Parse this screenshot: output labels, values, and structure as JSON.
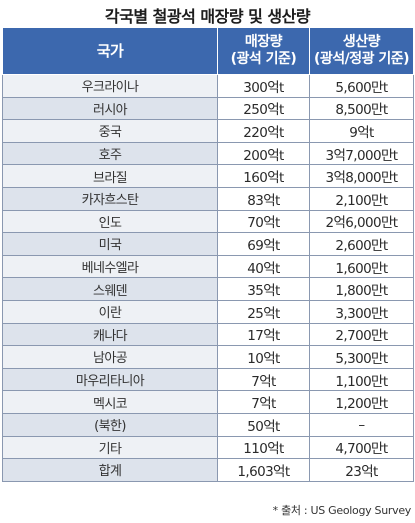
{
  "title": "각국별 철광석 매장량 및 생산량",
  "headers": {
    "country": "국가",
    "reserve_line1": "매장량",
    "reserve_line2": "(광석 기준)",
    "production_line1": "생산량",
    "production_line2": "(광석/정광 기준)"
  },
  "rows": [
    {
      "country": "우크라이나",
      "reserve": "300억t",
      "production": "5,600만t"
    },
    {
      "country": "러시아",
      "reserve": "250억t",
      "production": "8,500만t"
    },
    {
      "country": "중국",
      "reserve": "220억t",
      "production": "9억t"
    },
    {
      "country": "호주",
      "reserve": "200억t",
      "production": "3억7,000만t"
    },
    {
      "country": "브라질",
      "reserve": "160억t",
      "production": "3억8,000만t"
    },
    {
      "country": "카자흐스탄",
      "reserve": "83억t",
      "production": "2,100만t"
    },
    {
      "country": "인도",
      "reserve": "70억t",
      "production": "2억6,000만t"
    },
    {
      "country": "미국",
      "reserve": "69억t",
      "production": "2,600만t"
    },
    {
      "country": "베네수엘라",
      "reserve": "40억t",
      "production": "1,600만t"
    },
    {
      "country": "스웨덴",
      "reserve": "35억t",
      "production": "1,800만t"
    },
    {
      "country": "이란",
      "reserve": "25억t",
      "production": "3,300만t"
    },
    {
      "country": "캐나다",
      "reserve": "17억t",
      "production": "2,700만t"
    },
    {
      "country": "남아공",
      "reserve": "10억t",
      "production": "5,300만t"
    },
    {
      "country": "마우리타니아",
      "reserve": "7억t",
      "production": "1,100만t"
    },
    {
      "country": "멕시코",
      "reserve": "7억t",
      "production": "1,200만t"
    },
    {
      "country": "(북한)",
      "reserve": "50억t",
      "production": "–"
    },
    {
      "country": "기타",
      "reserve": "110억t",
      "production": "4,700만t"
    },
    {
      "country": "합계",
      "reserve": "1,603억t",
      "production": "23억t"
    }
  ],
  "source": "* 출처 : US Geology Survey"
}
